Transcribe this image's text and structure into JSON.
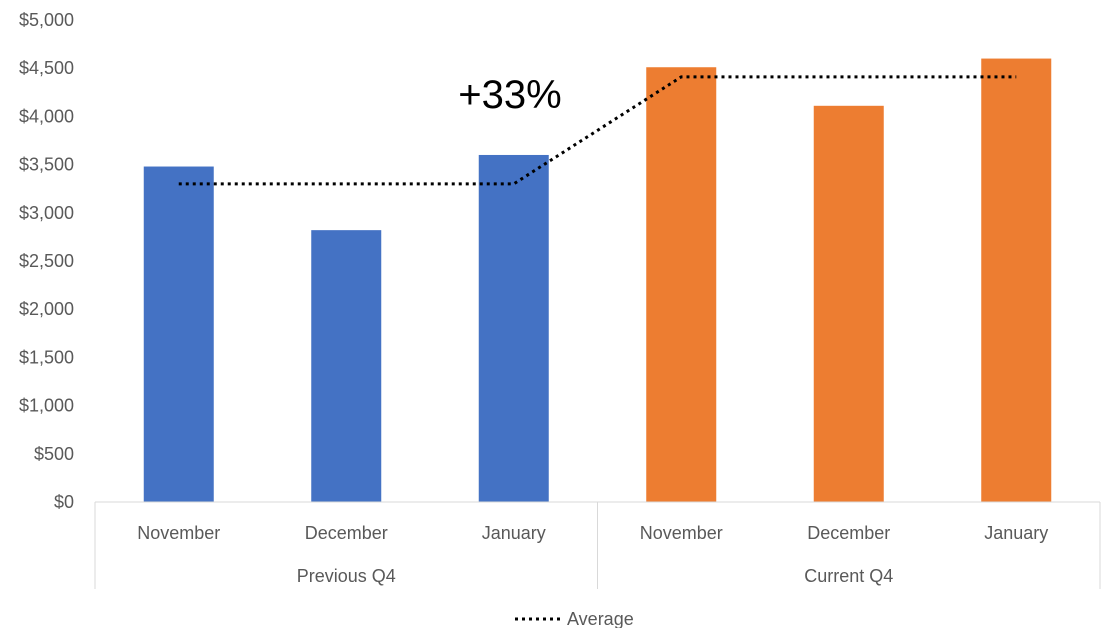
{
  "chart_data": {
    "type": "bar",
    "title": "",
    "xlabel": "",
    "ylabel": "",
    "ylim": [
      0,
      5000
    ],
    "yticks": [
      0,
      500,
      1000,
      1500,
      2000,
      2500,
      3000,
      3500,
      4000,
      4500,
      5000
    ],
    "ytick_labels": [
      "$0",
      "$500",
      "$1,000",
      "$1,500",
      "$2,000",
      "$2,500",
      "$3,000",
      "$3,500",
      "$4,000",
      "$4,500",
      "$5,000"
    ],
    "grid": false,
    "groups": [
      {
        "label": "Previous Q4",
        "color": "#4472C4"
      },
      {
        "label": "Current Q4",
        "color": "#ED7D31"
      }
    ],
    "categories": [
      "November",
      "December",
      "January",
      "November",
      "December",
      "January"
    ],
    "group_index": [
      0,
      0,
      0,
      1,
      1,
      1
    ],
    "values": [
      3480,
      2820,
      3600,
      4510,
      4110,
      4600
    ],
    "average": {
      "name": "Average",
      "color": "#000000",
      "values": [
        3300,
        3300,
        3300,
        4410,
        4410,
        4410
      ]
    },
    "annotation": "+33%",
    "legend": {
      "position": "bottom",
      "entries": [
        "Average"
      ]
    }
  }
}
